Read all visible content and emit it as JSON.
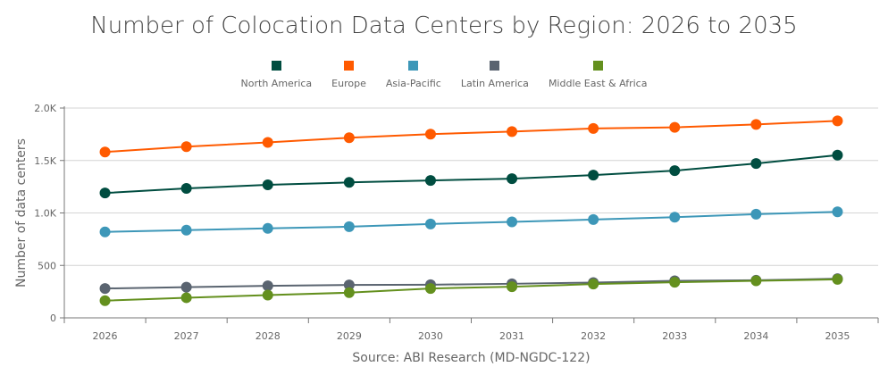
{
  "chart_data": {
    "type": "line",
    "title": "Number of Colocation Data Centers by Region: 2026 to 2035",
    "ylabel": "Number of data centers",
    "xlabel": "Source: ABI Research (MD-NGDC-122)",
    "ylim": [
      0,
      2000
    ],
    "yticks": [
      "0",
      "500",
      "1.0K",
      "1.5K",
      "2.0K"
    ],
    "ytick_values": [
      0,
      500,
      1000,
      1500,
      2000
    ],
    "grid": true,
    "legend": "top",
    "categories": [
      "2026",
      "2027",
      "2028",
      "2029",
      "2030",
      "2031",
      "2032",
      "2033",
      "2034",
      "2035"
    ],
    "series": [
      {
        "name": "North America",
        "color": "#004d40",
        "values": [
          1190,
          1234,
          1268,
          1291,
          1310,
          1327,
          1361,
          1403,
          1471,
          1551
        ]
      },
      {
        "name": "Europe",
        "color": "#ff5a00",
        "values": [
          1581,
          1632,
          1672,
          1717,
          1751,
          1776,
          1805,
          1816,
          1844,
          1878
        ]
      },
      {
        "name": "Asia-Pacific",
        "color": "#3d97b8",
        "values": [
          819,
          836,
          853,
          869,
          895,
          915,
          937,
          960,
          988,
          1011
        ]
      },
      {
        "name": "Latin America",
        "color": "#5a6470",
        "values": [
          280,
          293,
          305,
          314,
          316,
          325,
          336,
          353,
          358,
          373
        ]
      },
      {
        "name": "Middle East & Africa",
        "color": "#64901e",
        "values": [
          164,
          192,
          217,
          240,
          280,
          297,
          322,
          339,
          353,
          367
        ]
      }
    ]
  }
}
